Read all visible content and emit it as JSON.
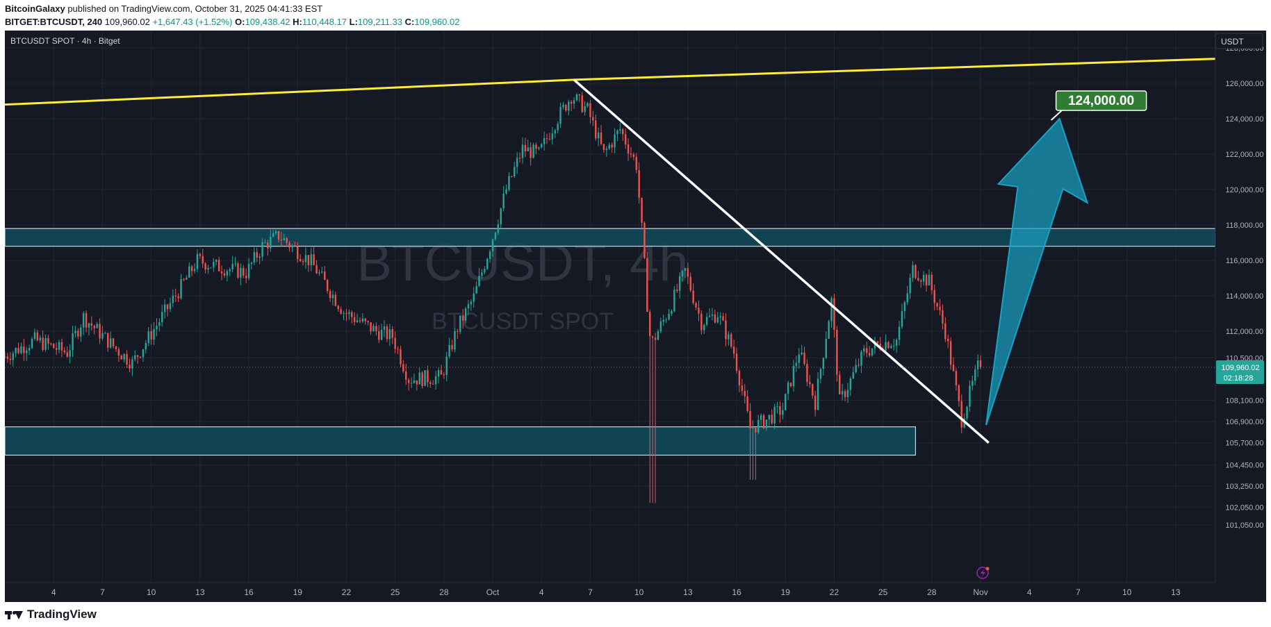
{
  "header": {
    "author": "BitcoinGalaxy",
    "published_text": "published on TradingView.com, October 31, 2025 04:41:33 EST",
    "symbol": "BITGET:BTCUSDT, 240",
    "last": "109,960.02",
    "change": "+1,647.43 (+1.52%)",
    "o_label": "O:",
    "o_value": "109,438.42",
    "h_label": "H:",
    "h_value": "110,448.17",
    "l_label": "L:",
    "l_value": "109,211.33",
    "c_label": "C:",
    "c_value": "109,960.02"
  },
  "chart": {
    "legend": "BTCUSDT SPOT · 4h · Bitget",
    "watermark_main": "BTCUSDT, 4h",
    "watermark_sub": "BTCUSDT SPOT",
    "currency_button": "USDT",
    "price_labels": [
      "128,000.00",
      "126,000.00",
      "124,000.00",
      "122,000.00",
      "120,000.00",
      "118,000.00",
      "116,000.00",
      "114,000.00",
      "112,000.00",
      "110,500.00",
      "108,100.00",
      "106,900.00",
      "105,700.00",
      "104,450.00",
      "103,250.00",
      "102,050.00",
      "101,050.00"
    ],
    "current_price": "109,960.02",
    "countdown": "02:18:28",
    "target_label": "124,000.00",
    "x_labels": [
      "4",
      "7",
      "10",
      "13",
      "16",
      "19",
      "22",
      "25",
      "28",
      "Oct",
      "4",
      "7",
      "10",
      "13",
      "16",
      "19",
      "22",
      "25",
      "28",
      "Nov",
      "4",
      "7",
      "10",
      "13"
    ],
    "colors": {
      "background": "#151924",
      "up": "#26a69a",
      "down": "#ef5350",
      "trendline_upper": "#ffeb3b",
      "trendline_down": "#ffffff",
      "zone_fill": "#0f4c5c",
      "arrow": "#1aa3c4",
      "target_box": "#2e7d32",
      "current_price_tag": "#26a69a"
    }
  },
  "chart_data": {
    "type": "candlestick",
    "symbol": "BTCUSDT",
    "timeframe": "4h",
    "exchange": "Bitget",
    "ylim": [
      100000,
      128500
    ],
    "x_axis": [
      "Sep 4",
      "Sep 7",
      "Sep 10",
      "Sep 13",
      "Sep 16",
      "Sep 19",
      "Sep 22",
      "Sep 25",
      "Sep 28",
      "Oct 1",
      "Oct 4",
      "Oct 7",
      "Oct 10",
      "Oct 13",
      "Oct 16",
      "Oct 19",
      "Oct 22",
      "Oct 25",
      "Oct 28",
      "Nov 1",
      "Nov 4",
      "Nov 7",
      "Nov 10",
      "Nov 13"
    ],
    "anchors": [
      [
        "Sep 1",
        110500
      ],
      [
        "Sep 3",
        111500
      ],
      [
        "Sep 5",
        110800
      ],
      [
        "Sep 6",
        112800
      ],
      [
        "Sep 8",
        111000
      ],
      [
        "Sep 9",
        110200
      ],
      [
        "Sep 12",
        114500
      ],
      [
        "Sep 13",
        116000
      ],
      [
        "Sep 14",
        115700
      ],
      [
        "Sep 16",
        115300
      ],
      [
        "Sep 17",
        116800
      ],
      [
        "Sep 18",
        117400
      ],
      [
        "Sep 20",
        115900
      ],
      [
        "Sep 22",
        113100
      ],
      [
        "Sep 24",
        112000
      ],
      [
        "Sep 25",
        111700
      ],
      [
        "Sep 26",
        109300
      ],
      [
        "Sep 28",
        109400
      ],
      [
        "Sep 29",
        112200
      ],
      [
        "Sep 30",
        113900
      ],
      [
        "Oct 1",
        116800
      ],
      [
        "Oct 2",
        120000
      ],
      [
        "Oct 3",
        122300
      ],
      [
        "Oct 4",
        122000
      ],
      [
        "Oct 5",
        123800
      ],
      [
        "Oct 6",
        125300
      ],
      [
        "Oct 7",
        124500
      ],
      [
        "Oct 8",
        122000
      ],
      [
        "Oct 9",
        123400
      ],
      [
        "Oct 10",
        121400
      ],
      [
        "Oct 10.4",
        117000
      ],
      [
        "Oct 10.8",
        111800
      ],
      [
        "Oct 11",
        111400
      ],
      [
        "Oct 12",
        113200
      ],
      [
        "Oct 13",
        115400
      ],
      [
        "Oct 14",
        112500
      ],
      [
        "Oct 15",
        113000
      ],
      [
        "Oct 16",
        110800
      ],
      [
        "Oct 17",
        106500
      ],
      [
        "Oct 18",
        107000
      ],
      [
        "Oct 19",
        107600
      ],
      [
        "Oct 20",
        110900
      ],
      [
        "Oct 21",
        108000
      ],
      [
        "Oct 22",
        113700
      ],
      [
        "Oct 22.5",
        108000
      ],
      [
        "Oct 23",
        108900
      ],
      [
        "Oct 24",
        110800
      ],
      [
        "Oct 25",
        111300
      ],
      [
        "Oct 26",
        111500
      ],
      [
        "Oct 27",
        115500
      ],
      [
        "Oct 28",
        114800
      ],
      [
        "Oct 29",
        112000
      ],
      [
        "Oct 30",
        107000
      ],
      [
        "Oct 31",
        109960.02
      ]
    ],
    "drawings": {
      "upper_trendline": [
        [
          "Sep 1",
          124800
        ],
        [
          "Oct 6",
          126200
        ],
        [
          "Nov 15",
          127400
        ]
      ],
      "descending_trendline": [
        [
          "Oct 6",
          126200
        ],
        [
          "Oct 31.5",
          105700
        ]
      ],
      "resistance_zone": [
        116800,
        117800
      ],
      "support_zone": [
        105000,
        106600
      ],
      "target_arrow": {
        "from": [
          "Oct 31",
          106700
        ],
        "to": [
          "Nov 4",
          124000
        ]
      },
      "target": 124000
    },
    "last_price": 109960.02
  }
}
